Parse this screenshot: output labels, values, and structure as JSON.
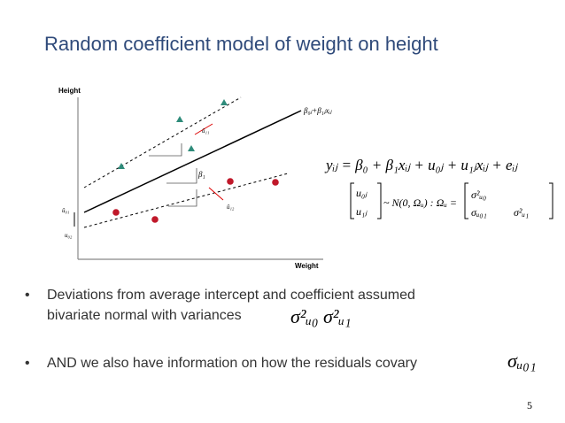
{
  "title": "Random coefficient model of weight on height",
  "diagram": {
    "y_axis_label": "Height",
    "x_axis_label": "Weight",
    "line_label": "β₀ⱼ+β₁ⱼxᵢⱼ",
    "labels": [
      "û₁₁",
      "û₁₂",
      "β₁",
      "û₀₁",
      "u₀₂"
    ]
  },
  "equation": "yᵢⱼ = β₀ + β₁xᵢⱼ + u₀ⱼ + u₁ⱼxᵢⱼ + eᵢⱼ",
  "covariance": {
    "vector": [
      "u₀ⱼ",
      "u₁ⱼ"
    ],
    "relation": "~ N(0, Ωᵤ) : Ωᵤ =",
    "matrix": [
      "σ²ᵤ₀",
      "σᵤ₀₁",
      "σ²ᵤ₁"
    ]
  },
  "bullets": [
    {
      "lines": [
        "Deviations from average intercept and coefficient assumed",
        "bivariate normal with variances"
      ],
      "math": "σ²ᵤ₀  σ²ᵤ₁"
    },
    {
      "lines": [
        "AND we also have information on how the residuals covary"
      ],
      "math": "σᵤ₀₁"
    }
  ],
  "page_number": "5"
}
